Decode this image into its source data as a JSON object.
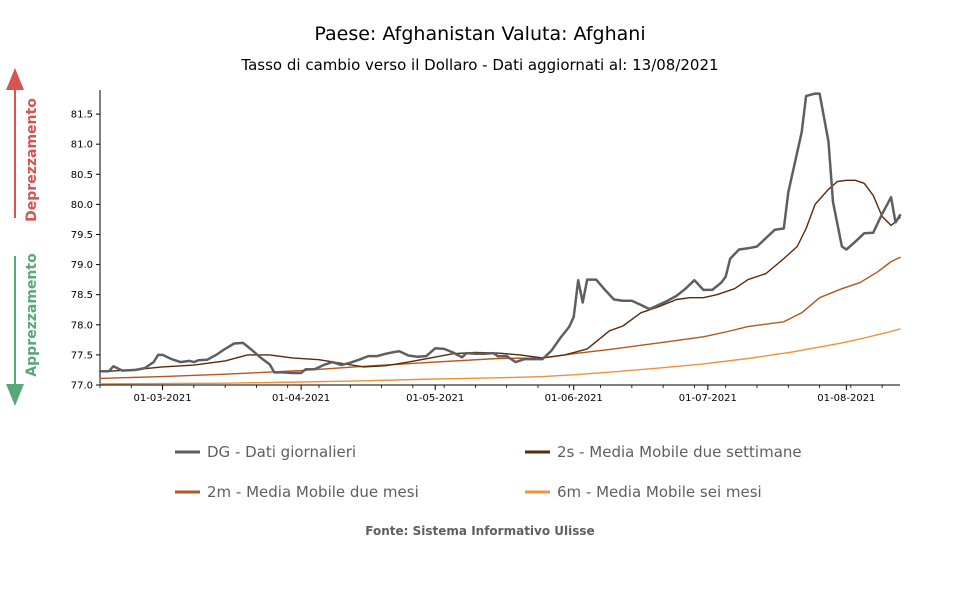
{
  "chart_data": {
    "type": "line",
    "title": "Paese: Afghanistan Valuta: Afghani",
    "subtitle": "Tasso di cambio verso il Dollaro - Dati aggiornati al: 13/08/2021",
    "source": "Fonte: Sistema Informativo Ulisse",
    "side_labels": {
      "top": "Deprezzamento",
      "top_color": "#d9534f",
      "bottom": "Apprezzamento",
      "bottom_color": "#5aa77a"
    },
    "x_range": [
      "2021-02-15",
      "2021-08-13"
    ],
    "ylim": [
      77.0,
      81.9
    ],
    "y_ticks": [
      "77.0",
      "77.5",
      "78.0",
      "78.5",
      "79.0",
      "79.5",
      "80.0",
      "80.5",
      "81.0",
      "81.5"
    ],
    "x_ticks": [
      {
        "date": "2021-03-01",
        "label": "01-03-2021"
      },
      {
        "date": "2021-04-01",
        "label": "01-04-2021"
      },
      {
        "date": "2021-05-01",
        "label": "01-05-2021"
      },
      {
        "date": "2021-06-01",
        "label": "01-06-2021"
      },
      {
        "date": "2021-07-01",
        "label": "01-07-2021"
      },
      {
        "date": "2021-08-01",
        "label": "01-08-2021"
      }
    ],
    "grid": false,
    "legend_position": "bottom",
    "series": [
      {
        "name": "DG - Dati giornalieri",
        "color": "#5f5f5f",
        "width": 2.5,
        "points": [
          [
            "2021-02-15",
            77.23
          ],
          [
            "2021-02-17",
            77.23
          ],
          [
            "2021-02-18",
            77.31
          ],
          [
            "2021-02-20",
            77.24
          ],
          [
            "2021-02-23",
            77.25
          ],
          [
            "2021-02-25",
            77.28
          ],
          [
            "2021-02-27",
            77.38
          ],
          [
            "2021-02-28",
            77.5
          ],
          [
            "2021-03-01",
            77.5
          ],
          [
            "2021-03-03",
            77.43
          ],
          [
            "2021-03-05",
            77.38
          ],
          [
            "2021-03-07",
            77.4
          ],
          [
            "2021-03-08",
            77.38
          ],
          [
            "2021-03-09",
            77.41
          ],
          [
            "2021-03-11",
            77.42
          ],
          [
            "2021-03-13",
            77.5
          ],
          [
            "2021-03-15",
            77.6
          ],
          [
            "2021-03-17",
            77.69
          ],
          [
            "2021-03-19",
            77.7
          ],
          [
            "2021-03-21",
            77.58
          ],
          [
            "2021-03-23",
            77.45
          ],
          [
            "2021-03-25",
            77.34
          ],
          [
            "2021-03-26",
            77.21
          ],
          [
            "2021-03-28",
            77.21
          ],
          [
            "2021-03-30",
            77.2
          ],
          [
            "2021-04-01",
            77.2
          ],
          [
            "2021-04-02",
            77.26
          ],
          [
            "2021-04-04",
            77.26
          ],
          [
            "2021-04-06",
            77.33
          ],
          [
            "2021-04-08",
            77.38
          ],
          [
            "2021-04-10",
            77.33
          ],
          [
            "2021-04-12",
            77.37
          ],
          [
            "2021-04-14",
            77.42
          ],
          [
            "2021-04-16",
            77.48
          ],
          [
            "2021-04-18",
            77.48
          ],
          [
            "2021-04-20",
            77.52
          ],
          [
            "2021-04-22",
            77.55
          ],
          [
            "2021-04-23",
            77.56
          ],
          [
            "2021-04-25",
            77.49
          ],
          [
            "2021-04-27",
            77.47
          ],
          [
            "2021-04-29",
            77.48
          ],
          [
            "2021-05-01",
            77.61
          ],
          [
            "2021-05-03",
            77.6
          ],
          [
            "2021-05-05",
            77.54
          ],
          [
            "2021-05-07",
            77.46
          ],
          [
            "2021-05-08",
            77.53
          ],
          [
            "2021-05-10",
            77.52
          ],
          [
            "2021-05-12",
            77.52
          ],
          [
            "2021-05-14",
            77.53
          ],
          [
            "2021-05-15",
            77.48
          ],
          [
            "2021-05-17",
            77.48
          ],
          [
            "2021-05-19",
            77.38
          ],
          [
            "2021-05-21",
            77.43
          ],
          [
            "2021-05-23",
            77.43
          ],
          [
            "2021-05-25",
            77.43
          ],
          [
            "2021-05-27",
            77.57
          ],
          [
            "2021-05-29",
            77.78
          ],
          [
            "2021-05-31",
            77.97
          ],
          [
            "2021-06-01",
            78.13
          ],
          [
            "2021-06-02",
            78.74
          ],
          [
            "2021-06-03",
            78.37
          ],
          [
            "2021-06-04",
            78.75
          ],
          [
            "2021-06-06",
            78.75
          ],
          [
            "2021-06-08",
            78.58
          ],
          [
            "2021-06-10",
            78.42
          ],
          [
            "2021-06-12",
            78.4
          ],
          [
            "2021-06-14",
            78.4
          ],
          [
            "2021-06-16",
            78.33
          ],
          [
            "2021-06-18",
            78.26
          ],
          [
            "2021-06-20",
            78.33
          ],
          [
            "2021-06-22",
            78.4
          ],
          [
            "2021-06-24",
            78.48
          ],
          [
            "2021-06-26",
            78.6
          ],
          [
            "2021-06-28",
            78.74
          ],
          [
            "2021-06-30",
            78.58
          ],
          [
            "2021-07-02",
            78.58
          ],
          [
            "2021-07-04",
            78.7
          ],
          [
            "2021-07-05",
            78.8
          ],
          [
            "2021-07-06",
            79.1
          ],
          [
            "2021-07-08",
            79.25
          ],
          [
            "2021-07-10",
            79.27
          ],
          [
            "2021-07-12",
            79.3
          ],
          [
            "2021-07-14",
            79.44
          ],
          [
            "2021-07-16",
            79.58
          ],
          [
            "2021-07-18",
            79.6
          ],
          [
            "2021-07-19",
            80.2
          ],
          [
            "2021-07-22",
            81.2
          ],
          [
            "2021-07-23",
            81.8
          ],
          [
            "2021-07-25",
            81.84
          ],
          [
            "2021-07-26",
            81.84
          ],
          [
            "2021-07-28",
            81.04
          ],
          [
            "2021-07-29",
            80.04
          ],
          [
            "2021-07-31",
            79.3
          ],
          [
            "2021-08-01",
            79.25
          ],
          [
            "2021-08-03",
            79.38
          ],
          [
            "2021-08-05",
            79.52
          ],
          [
            "2021-08-07",
            79.53
          ],
          [
            "2021-08-09",
            79.84
          ],
          [
            "2021-08-11",
            80.12
          ],
          [
            "2021-08-12",
            79.7
          ],
          [
            "2021-08-13",
            79.82
          ]
        ]
      },
      {
        "name": "2s - Media Mobile due settimane",
        "color": "#5a2a0a",
        "width": 1.4,
        "points": [
          [
            "2021-02-15",
            77.22
          ],
          [
            "2021-02-22",
            77.25
          ],
          [
            "2021-03-01",
            77.3
          ],
          [
            "2021-03-08",
            77.33
          ],
          [
            "2021-03-15",
            77.4
          ],
          [
            "2021-03-20",
            77.5
          ],
          [
            "2021-03-25",
            77.5
          ],
          [
            "2021-03-30",
            77.45
          ],
          [
            "2021-04-05",
            77.42
          ],
          [
            "2021-04-10",
            77.36
          ],
          [
            "2021-04-15",
            77.3
          ],
          [
            "2021-04-20",
            77.32
          ],
          [
            "2021-04-25",
            77.38
          ],
          [
            "2021-04-30",
            77.45
          ],
          [
            "2021-05-05",
            77.52
          ],
          [
            "2021-05-10",
            77.54
          ],
          [
            "2021-05-15",
            77.53
          ],
          [
            "2021-05-20",
            77.5
          ],
          [
            "2021-05-25",
            77.45
          ],
          [
            "2021-05-30",
            77.5
          ],
          [
            "2021-06-04",
            77.6
          ],
          [
            "2021-06-09",
            77.9
          ],
          [
            "2021-06-12",
            77.98
          ],
          [
            "2021-06-16",
            78.2
          ],
          [
            "2021-06-20",
            78.3
          ],
          [
            "2021-06-24",
            78.42
          ],
          [
            "2021-06-27",
            78.45
          ],
          [
            "2021-06-30",
            78.45
          ],
          [
            "2021-07-03",
            78.5
          ],
          [
            "2021-07-07",
            78.6
          ],
          [
            "2021-07-10",
            78.75
          ],
          [
            "2021-07-14",
            78.85
          ],
          [
            "2021-07-18",
            79.1
          ],
          [
            "2021-07-21",
            79.3
          ],
          [
            "2021-07-23",
            79.6
          ],
          [
            "2021-07-25",
            80.0
          ],
          [
            "2021-07-28",
            80.25
          ],
          [
            "2021-07-30",
            80.38
          ],
          [
            "2021-08-01",
            80.4
          ],
          [
            "2021-08-03",
            80.4
          ],
          [
            "2021-08-05",
            80.35
          ],
          [
            "2021-08-07",
            80.15
          ],
          [
            "2021-08-09",
            79.8
          ],
          [
            "2021-08-11",
            79.65
          ],
          [
            "2021-08-13",
            79.78
          ]
        ]
      },
      {
        "name": "2m - Media Mobile due mesi",
        "color": "#b5561a",
        "width": 1.4,
        "points": [
          [
            "2021-02-15",
            77.11
          ],
          [
            "2021-03-01",
            77.14
          ],
          [
            "2021-03-15",
            77.18
          ],
          [
            "2021-04-01",
            77.24
          ],
          [
            "2021-04-15",
            77.31
          ],
          [
            "2021-05-01",
            77.38
          ],
          [
            "2021-05-15",
            77.44
          ],
          [
            "2021-05-25",
            77.45
          ],
          [
            "2021-06-01",
            77.52
          ],
          [
            "2021-06-10",
            77.6
          ],
          [
            "2021-06-20",
            77.7
          ],
          [
            "2021-06-30",
            77.8
          ],
          [
            "2021-07-05",
            77.88
          ],
          [
            "2021-07-10",
            77.97
          ],
          [
            "2021-07-18",
            78.05
          ],
          [
            "2021-07-22",
            78.2
          ],
          [
            "2021-07-26",
            78.45
          ],
          [
            "2021-07-31",
            78.6
          ],
          [
            "2021-08-04",
            78.7
          ],
          [
            "2021-08-08",
            78.88
          ],
          [
            "2021-08-11",
            79.05
          ],
          [
            "2021-08-13",
            79.12
          ]
        ]
      },
      {
        "name": "6m - Media Mobile sei mesi",
        "color": "#f0913a",
        "width": 1.4,
        "points": [
          [
            "2021-02-15",
            77.02
          ],
          [
            "2021-03-15",
            77.03
          ],
          [
            "2021-04-01",
            77.05
          ],
          [
            "2021-04-15",
            77.07
          ],
          [
            "2021-05-01",
            77.1
          ],
          [
            "2021-05-15",
            77.12
          ],
          [
            "2021-05-25",
            77.14
          ],
          [
            "2021-06-01",
            77.17
          ],
          [
            "2021-06-10",
            77.22
          ],
          [
            "2021-06-20",
            77.28
          ],
          [
            "2021-06-30",
            77.35
          ],
          [
            "2021-07-10",
            77.44
          ],
          [
            "2021-07-20",
            77.55
          ],
          [
            "2021-07-31",
            77.7
          ],
          [
            "2021-08-05",
            77.78
          ],
          [
            "2021-08-10",
            77.87
          ],
          [
            "2021-08-13",
            77.93
          ]
        ]
      }
    ]
  }
}
